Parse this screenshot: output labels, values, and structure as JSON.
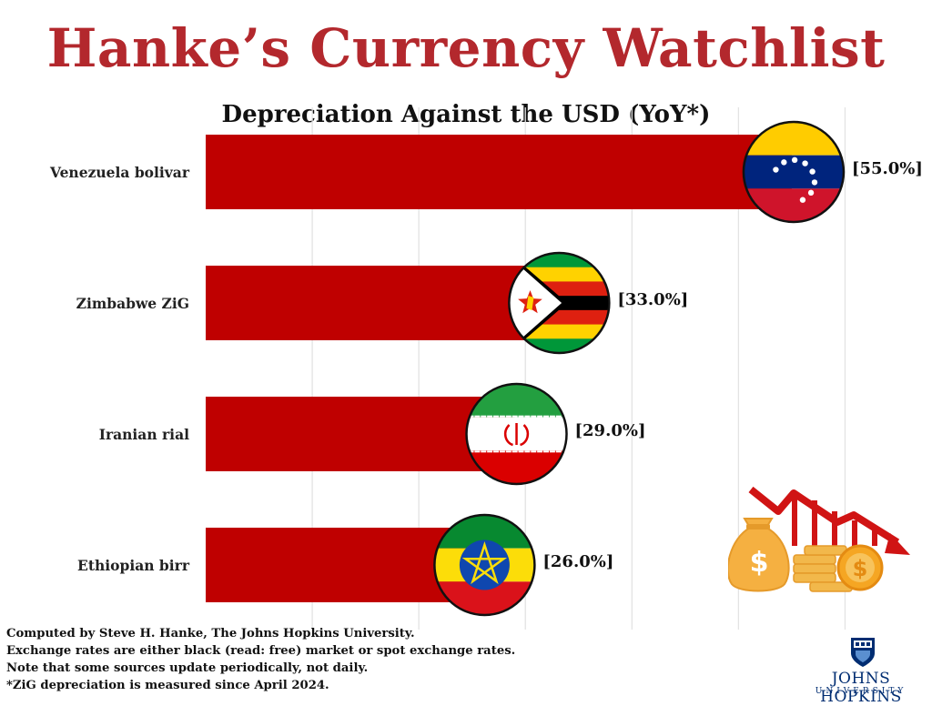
{
  "header": {
    "title": "Hanke’s Currency Watchlist",
    "subtitle": "Depreciation Against the USD (YoY*)"
  },
  "chart_data": {
    "type": "bar",
    "orientation": "horizontal",
    "title": "Depreciation Against the USD (YoY*)",
    "categories": [
      "Venezuela bolivar",
      "Zimbabwe ZiG",
      "Iranian rial",
      "Ethiopian birr"
    ],
    "values": [
      55.0,
      33.0,
      29.0,
      26.0
    ],
    "value_labels": [
      "[55.0%]",
      "[33.0%]",
      "[29.0%]",
      "[26.0%]"
    ],
    "flags": [
      "venezuela-flag",
      "zimbabwe-flag",
      "iran-flag",
      "ethiopia-flag"
    ],
    "xlim": [
      0,
      65
    ],
    "grid": true,
    "bar_color": "#bf0000",
    "xlabel": "",
    "ylabel": ""
  },
  "footnotes": {
    "line1": "Computed by Steve H. Hanke, The Johns Hopkins University.",
    "line2": "Exchange rates are either black (read: free) market or spot exchange rates.",
    "line3": "Note that some sources update periodically, not daily.",
    "line4": "*ZiG depreciation is measured since April 2024."
  },
  "logo": {
    "name": "JOHNS HOPKINS",
    "sub": "UNIVERSITY"
  },
  "decor": {
    "money_icon": "money-bag-coins-declining-chart-icon",
    "title_color": "#b3282d",
    "logo_color": "#002d72"
  }
}
